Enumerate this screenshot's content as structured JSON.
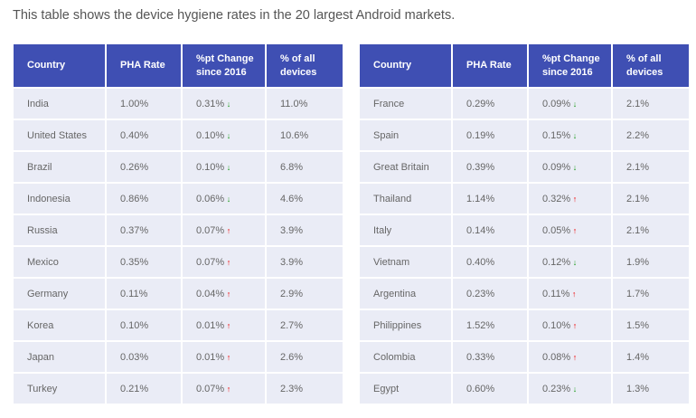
{
  "caption": "This table shows the device hygiene rates in the 20 largest Android markets.",
  "headers": [
    "Country",
    "PHA Rate",
    "%pt Change since 2016",
    "% of all devices"
  ],
  "colors": {
    "header": "#3f4fb3",
    "row": "#eaecf6",
    "up": "#e00000",
    "down": "#1a9a1a"
  },
  "tables": [
    [
      {
        "country": "India",
        "rate": "1.00%",
        "change": "0.31%",
        "dir": "down",
        "share": "11.0%"
      },
      {
        "country": "United States",
        "rate": "0.40%",
        "change": "0.10%",
        "dir": "down",
        "share": "10.6%"
      },
      {
        "country": "Brazil",
        "rate": "0.26%",
        "change": "0.10%",
        "dir": "down",
        "share": "6.8%"
      },
      {
        "country": "Indonesia",
        "rate": "0.86%",
        "change": "0.06%",
        "dir": "down",
        "share": "4.6%"
      },
      {
        "country": "Russia",
        "rate": "0.37%",
        "change": "0.07%",
        "dir": "up",
        "share": "3.9%"
      },
      {
        "country": "Mexico",
        "rate": "0.35%",
        "change": "0.07%",
        "dir": "up",
        "share": "3.9%"
      },
      {
        "country": "Germany",
        "rate": "0.11%",
        "change": "0.04%",
        "dir": "up",
        "share": "2.9%"
      },
      {
        "country": "Korea",
        "rate": "0.10%",
        "change": "0.01%",
        "dir": "up",
        "share": "2.7%"
      },
      {
        "country": "Japan",
        "rate": "0.03%",
        "change": "0.01%",
        "dir": "up",
        "share": "2.6%"
      },
      {
        "country": "Turkey",
        "rate": "0.21%",
        "change": "0.07%",
        "dir": "up",
        "share": "2.3%"
      }
    ],
    [
      {
        "country": "France",
        "rate": "0.29%",
        "change": "0.09%",
        "dir": "down",
        "share": "2.1%"
      },
      {
        "country": "Spain",
        "rate": "0.19%",
        "change": "0.15%",
        "dir": "down",
        "share": "2.2%"
      },
      {
        "country": "Great Britain",
        "rate": "0.39%",
        "change": "0.09%",
        "dir": "down",
        "share": "2.1%"
      },
      {
        "country": "Thailand",
        "rate": "1.14%",
        "change": "0.32%",
        "dir": "up",
        "share": "2.1%"
      },
      {
        "country": "Italy",
        "rate": "0.14%",
        "change": "0.05%",
        "dir": "up",
        "share": "2.1%"
      },
      {
        "country": "Vietnam",
        "rate": "0.40%",
        "change": "0.12%",
        "dir": "down",
        "share": "1.9%"
      },
      {
        "country": "Argentina",
        "rate": "0.23%",
        "change": "0.11%",
        "dir": "up",
        "share": "1.7%"
      },
      {
        "country": "Philippines",
        "rate": "1.52%",
        "change": "0.10%",
        "dir": "up",
        "share": "1.5%"
      },
      {
        "country": "Colombia",
        "rate": "0.33%",
        "change": "0.08%",
        "dir": "up",
        "share": "1.4%"
      },
      {
        "country": "Egypt",
        "rate": "0.60%",
        "change": "0.23%",
        "dir": "down",
        "share": "1.3%"
      }
    ]
  ]
}
